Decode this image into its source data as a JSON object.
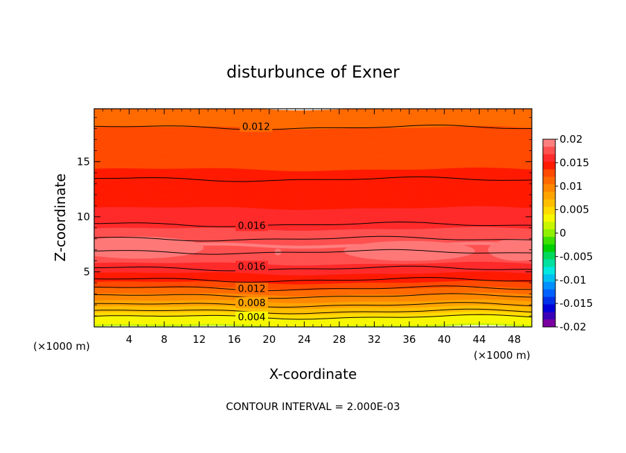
{
  "chart_data": {
    "type": "heatmap",
    "title": "disturbunce of Exner",
    "xlabel": "X-coordinate",
    "ylabel": "Z-coordinate",
    "x_unit_left": "(×1000 m)",
    "x_unit_right": "(×1000 m)",
    "xlim": [
      0,
      50
    ],
    "ylim": [
      0,
      19.8
    ],
    "xticks": [
      "4",
      "8",
      "12",
      "16",
      "20",
      "24",
      "28",
      "32",
      "36",
      "40",
      "44",
      "48"
    ],
    "xtick_values": [
      4,
      8,
      12,
      16,
      20,
      24,
      28,
      32,
      36,
      40,
      44,
      48
    ],
    "yticks": [
      "5",
      "10",
      "15"
    ],
    "ytick_values": [
      5,
      10,
      15
    ],
    "footer": "CONTOUR INTERVAL = 2.000E-03",
    "contour_interval": 0.002,
    "colorbar": {
      "labels": [
        "0.02",
        "0.015",
        "0.01",
        "0.005",
        "0",
        "-0.005",
        "-0.01",
        "-0.015",
        "-0.02"
      ],
      "values": [
        0.02,
        0.015,
        0.01,
        0.005,
        0,
        -0.005,
        -0.01,
        -0.015,
        -0.02
      ],
      "colors": [
        "#ff7f7f",
        "#ff5050",
        "#ff2a2a",
        "#ff1a00",
        "#ff4a00",
        "#ff6a00",
        "#ff8800",
        "#ffa300",
        "#ffbf00",
        "#ffdb00",
        "#f7f700",
        "#c8f500",
        "#8ef000",
        "#3ee000",
        "#00d000",
        "#00d85a",
        "#00e0a0",
        "#00e8e0",
        "#00c0f0",
        "#0090ff",
        "#0060ff",
        "#0030e8",
        "#0000d8",
        "#3a00b8",
        "#7a00a0"
      ]
    },
    "contour_labels": [
      {
        "text": "0.012",
        "value": 0.012,
        "x": 18.5,
        "z": 18.2
      },
      {
        "text": "0.016",
        "value": 0.016,
        "x": 18.0,
        "z": 9.2
      },
      {
        "text": "0.016",
        "value": 0.016,
        "x": 18.0,
        "z": 5.5
      },
      {
        "text": "0.012",
        "value": 0.012,
        "x": 18.0,
        "z": 3.5
      },
      {
        "text": "0.008",
        "value": 0.008,
        "x": 18.0,
        "z": 2.2
      },
      {
        "text": "0.004",
        "value": 0.004,
        "x": 18.0,
        "z": 0.9
      }
    ],
    "field_profile": {
      "z": [
        0,
        0.4,
        0.9,
        1.4,
        2.0,
        2.6,
        3.2,
        3.8,
        4.5,
        5.3,
        6.2,
        7.4,
        8.6,
        9.3,
        10.5,
        12.0,
        13.4,
        15.0,
        16.5,
        18.1,
        19.8
      ],
      "value": [
        0.002,
        0.003,
        0.004,
        0.006,
        0.008,
        0.0095,
        0.011,
        0.013,
        0.0145,
        0.016,
        0.0175,
        0.0185,
        0.0175,
        0.016,
        0.0153,
        0.0148,
        0.014,
        0.0133,
        0.0128,
        0.012,
        0.0112
      ]
    }
  }
}
